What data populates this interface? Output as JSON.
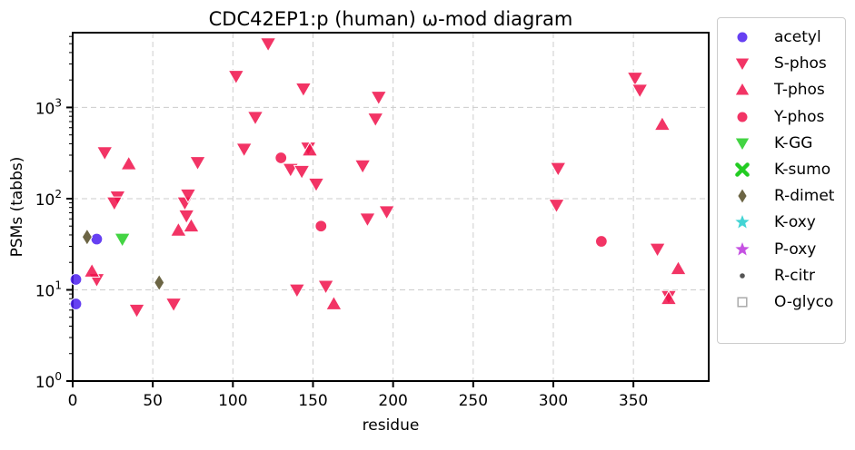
{
  "chart_data": {
    "type": "scatter",
    "title": "CDC42EP1:p (human) ω-mod diagram",
    "xlabel": "residue",
    "ylabel": "PSMs (tabbs)",
    "xlim": [
      0,
      397
    ],
    "ylim_log10": [
      0,
      3.82
    ],
    "y_scale": "log",
    "x_ticks": [
      "0",
      "50",
      "100",
      "150",
      "200",
      "250",
      "300",
      "350"
    ],
    "x_tick_values": [
      0,
      50,
      100,
      150,
      200,
      250,
      300,
      350
    ],
    "y_ticks": [
      {
        "base": "10",
        "exp": "0",
        "value": 1
      },
      {
        "base": "10",
        "exp": "1",
        "value": 10
      },
      {
        "base": "10",
        "exp": "2",
        "value": 100
      },
      {
        "base": "10",
        "exp": "3",
        "value": 1000
      }
    ],
    "grid": true,
    "legend_position": "outside-right",
    "series": [
      {
        "name": "acetyl",
        "marker": "circle",
        "color": "#4b1ef0",
        "points": [
          [
            2,
            13
          ],
          [
            2,
            7
          ],
          [
            15,
            36
          ]
        ]
      },
      {
        "name": "S-phos",
        "marker": "triangle-down",
        "color": "#f0104a",
        "points": [
          [
            15,
            13
          ],
          [
            20,
            320
          ],
          [
            28,
            105
          ],
          [
            26,
            90
          ],
          [
            40,
            6
          ],
          [
            63,
            7
          ],
          [
            70,
            90
          ],
          [
            72,
            110
          ],
          [
            71,
            65
          ],
          [
            78,
            250
          ],
          [
            102,
            2200
          ],
          [
            107,
            350
          ],
          [
            114,
            780
          ],
          [
            122,
            5000
          ],
          [
            136,
            210
          ],
          [
            140,
            10
          ],
          [
            143,
            200
          ],
          [
            144,
            1600
          ],
          [
            147,
            360
          ],
          [
            152,
            145
          ],
          [
            158,
            11
          ],
          [
            181,
            230
          ],
          [
            184,
            60
          ],
          [
            189,
            750
          ],
          [
            191,
            1300
          ],
          [
            196,
            72
          ],
          [
            302,
            85
          ],
          [
            303,
            215
          ],
          [
            351,
            2100
          ],
          [
            354,
            1550
          ],
          [
            365,
            28
          ],
          [
            372,
            8.5
          ]
        ]
      },
      {
        "name": "T-phos",
        "marker": "triangle-up",
        "color": "#f0104a",
        "points": [
          [
            12,
            16
          ],
          [
            35,
            240
          ],
          [
            66,
            45
          ],
          [
            74,
            50
          ],
          [
            148,
            340
          ],
          [
            163,
            7
          ],
          [
            368,
            650
          ],
          [
            372,
            8
          ],
          [
            378,
            17
          ]
        ]
      },
      {
        "name": "Y-phos",
        "marker": "circle",
        "color": "#f0104a",
        "points": [
          [
            130,
            280
          ],
          [
            155,
            50
          ],
          [
            330,
            34
          ]
        ]
      },
      {
        "name": "K-GG",
        "marker": "triangle-down",
        "color": "#22cc22",
        "points": [
          [
            31,
            36
          ]
        ]
      },
      {
        "name": "K-sumo",
        "marker": "x",
        "color": "#22cc22",
        "points": []
      },
      {
        "name": "R-dimet",
        "marker": "diamond",
        "color": "#5c5430",
        "points": [
          [
            9,
            38
          ],
          [
            54,
            12
          ]
        ]
      },
      {
        "name": "K-oxy",
        "marker": "star",
        "color": "#22cccc",
        "points": []
      },
      {
        "name": "P-oxy",
        "marker": "star",
        "color": "#bb33dd",
        "points": []
      },
      {
        "name": "R-citr",
        "marker": "dot",
        "color": "#555555",
        "points": []
      },
      {
        "name": "O-glyco",
        "marker": "square-open",
        "color": "#aaaaaa",
        "points": []
      }
    ]
  }
}
